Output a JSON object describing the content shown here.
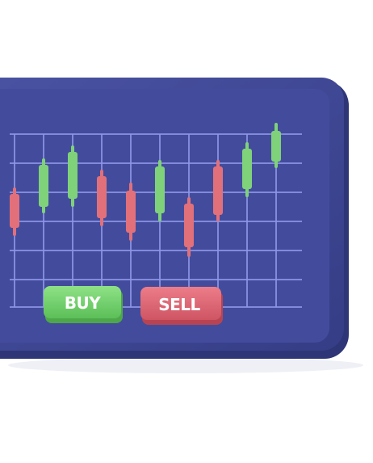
{
  "buttons": {
    "buy_label": "BUY",
    "sell_label": "SELL"
  },
  "colors": {
    "device_body": "#3f4791",
    "device_edge": "#2e3575",
    "screen": "#414a99",
    "grid": "#8d97e6",
    "bull": "#7fd27a",
    "bear": "#e2707a",
    "buy_button": "#72d06c",
    "sell_button": "#e06675"
  },
  "candles": [
    {
      "dir": "bear"
    },
    {
      "dir": "bull"
    },
    {
      "dir": "bull"
    },
    {
      "dir": "bear"
    },
    {
      "dir": "bear"
    },
    {
      "dir": "bull"
    },
    {
      "dir": "bear"
    },
    {
      "dir": "bear"
    },
    {
      "dir": "bull"
    },
    {
      "dir": "bull"
    }
  ]
}
